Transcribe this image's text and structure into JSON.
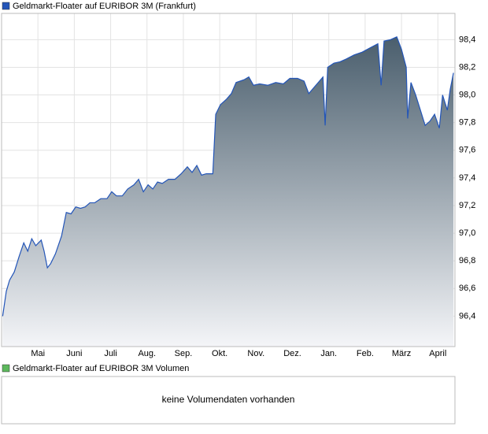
{
  "chart_data": {
    "type": "line",
    "legend_position": "top-left",
    "grid": true,
    "fill_gradient": [
      "#4a5e6d",
      "#f4f5f8"
    ],
    "series": [
      {
        "name": "Geldmarkt-Floater auf EURIBOR 3M (Frankfurt)",
        "color": "#2355b8",
        "x": [
          0.03,
          0.13,
          0.22,
          0.35,
          0.48,
          0.61,
          0.72,
          0.83,
          0.94,
          1.09,
          1.17,
          1.26,
          1.35,
          1.48,
          1.65,
          1.78,
          1.91,
          2.04,
          2.17,
          2.3,
          2.43,
          2.56,
          2.73,
          2.9,
          3.03,
          3.16,
          3.32,
          3.47,
          3.64,
          3.77,
          3.9,
          4.03,
          4.16,
          4.29,
          4.42,
          4.59,
          4.77,
          4.94,
          5.11,
          5.24,
          5.37,
          5.5,
          5.63,
          5.81,
          5.89,
          6.02,
          6.19,
          6.32,
          6.45,
          6.67,
          6.8,
          6.93,
          7.1,
          7.32,
          7.54,
          7.75,
          7.93,
          8.14,
          8.32,
          8.45,
          8.58,
          8.71,
          8.84,
          8.9,
          8.97,
          9.14,
          9.31,
          9.48,
          9.7,
          9.92,
          10.13,
          10.35,
          10.44,
          10.52,
          10.7,
          10.87,
          11.0,
          11.13,
          11.17,
          11.26,
          11.39,
          11.52,
          11.65,
          11.78,
          11.91,
          12.04,
          12.13,
          12.26,
          12.34,
          12.43
        ],
        "values": [
          96.4,
          96.58,
          96.66,
          96.72,
          96.83,
          96.93,
          96.87,
          96.96,
          96.91,
          96.95,
          96.87,
          96.75,
          96.78,
          96.85,
          96.98,
          97.15,
          97.14,
          97.19,
          97.18,
          97.19,
          97.22,
          97.22,
          97.25,
          97.25,
          97.3,
          97.27,
          97.27,
          97.32,
          97.35,
          97.39,
          97.3,
          97.35,
          97.32,
          97.37,
          97.36,
          97.39,
          97.39,
          97.43,
          97.48,
          97.44,
          97.49,
          97.42,
          97.43,
          97.43,
          97.86,
          97.93,
          97.97,
          98.01,
          98.09,
          98.11,
          98.13,
          98.07,
          98.08,
          98.07,
          98.09,
          98.08,
          98.12,
          98.12,
          98.1,
          98.01,
          98.05,
          98.09,
          98.13,
          97.78,
          98.2,
          98.23,
          98.24,
          98.26,
          98.29,
          98.31,
          98.34,
          98.37,
          98.07,
          98.39,
          98.4,
          98.42,
          98.33,
          98.2,
          97.83,
          98.09,
          98.0,
          97.89,
          97.78,
          97.81,
          97.86,
          97.76,
          98.0,
          97.89,
          98.04,
          98.16
        ]
      }
    ],
    "xlim": [
      0,
      12.47
    ],
    "xticks": [
      {
        "value": 1,
        "label": "Mai"
      },
      {
        "value": 2,
        "label": "Juni"
      },
      {
        "value": 3,
        "label": "Juli"
      },
      {
        "value": 4,
        "label": "Aug."
      },
      {
        "value": 5,
        "label": "Sep."
      },
      {
        "value": 6,
        "label": "Okt."
      },
      {
        "value": 7,
        "label": "Nov."
      },
      {
        "value": 8,
        "label": "Dez."
      },
      {
        "value": 9,
        "label": "Jan."
      },
      {
        "value": 10,
        "label": "Feb."
      },
      {
        "value": 11,
        "label": "März"
      },
      {
        "value": 12,
        "label": "April"
      }
    ],
    "ylim": [
      96.18,
      98.59
    ],
    "yticks": [
      {
        "value": 96.4,
        "label": "96,4"
      },
      {
        "value": 96.6,
        "label": "96,6"
      },
      {
        "value": 96.8,
        "label": "96,8"
      },
      {
        "value": 97.0,
        "label": "97,0"
      },
      {
        "value": 97.2,
        "label": "97,2"
      },
      {
        "value": 97.4,
        "label": "97,4"
      },
      {
        "value": 97.6,
        "label": "97,6"
      },
      {
        "value": 97.8,
        "label": "97,8"
      },
      {
        "value": 98.0,
        "label": "98,0"
      },
      {
        "value": 98.2,
        "label": "98,2"
      },
      {
        "value": 98.4,
        "label": "98,4"
      }
    ]
  },
  "volume_panel": {
    "legend": "Geldmarkt-Floater auf EURIBOR 3M Volumen",
    "legend_color": "#5cb85c",
    "message": "keine Volumendaten vorhanden"
  }
}
